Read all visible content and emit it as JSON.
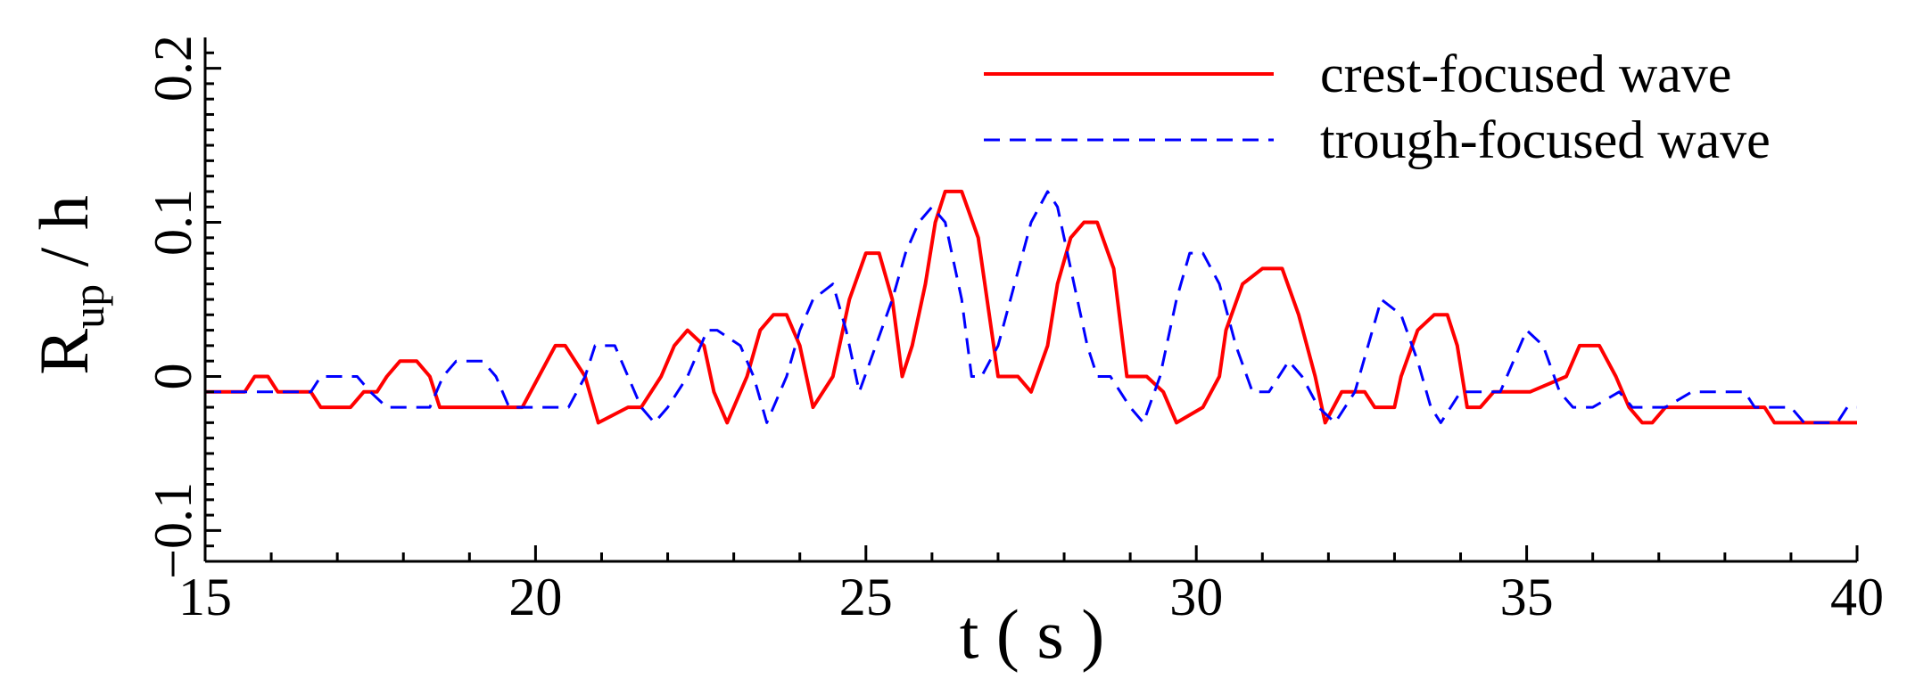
{
  "chart_data": {
    "type": "line",
    "xlabel": "t ( s )",
    "ylabel": {
      "main": "R",
      "subscript": "up",
      "suffix": " / h"
    },
    "xlim": [
      15,
      40
    ],
    "ylim": [
      -0.12,
      0.22
    ],
    "x_ticks": [
      15,
      20,
      25,
      30,
      35,
      40
    ],
    "x_tick_labels": [
      "15",
      "20",
      "25",
      "30",
      "35",
      "40"
    ],
    "y_ticks": [
      -0.1,
      0,
      0.1,
      0.2
    ],
    "y_tick_labels": [
      "−0.1",
      "0",
      "0.1",
      "0.2"
    ],
    "grid": false,
    "legend_position": "top-right",
    "series": [
      {
        "name": "crest-focused wave",
        "color": "#ff0000",
        "style": "solid",
        "x": [
          15,
          15.6,
          15.75,
          15.95,
          16.1,
          16.6,
          16.75,
          17.2,
          17.4,
          17.6,
          17.75,
          17.95,
          18.2,
          18.4,
          18.55,
          19.8,
          20.05,
          20.3,
          20.45,
          20.75,
          20.95,
          21.4,
          21.6,
          21.9,
          22.1,
          22.3,
          22.55,
          22.7,
          22.9,
          23.2,
          23.4,
          23.6,
          23.8,
          24.0,
          24.2,
          24.5,
          24.75,
          25.0,
          25.2,
          25.4,
          25.55,
          25.7,
          25.9,
          26.05,
          26.2,
          26.45,
          26.7,
          27.0,
          27.1,
          27.3,
          27.5,
          27.75,
          27.9,
          28.1,
          28.3,
          28.5,
          28.75,
          28.95,
          29.25,
          29.5,
          29.7,
          30.1,
          30.35,
          30.45,
          30.7,
          31.0,
          31.3,
          31.55,
          31.8,
          31.95,
          32.2,
          32.35,
          32.55,
          32.7,
          33.0,
          33.1,
          33.35,
          33.6,
          33.8,
          33.95,
          34.1,
          34.3,
          34.5,
          34.6,
          34.8,
          35.05,
          35.6,
          35.8,
          36.0,
          36.1,
          36.35,
          36.55,
          36.75,
          36.9,
          37.1,
          37.3,
          37.55,
          37.75,
          38.6,
          38.75,
          39.6,
          39.75,
          40.0
        ],
        "y": [
          -0.01,
          -0.01,
          0.0,
          0.0,
          -0.01,
          -0.01,
          -0.02,
          -0.02,
          -0.01,
          -0.01,
          0.0,
          0.01,
          0.01,
          0.0,
          -0.02,
          -0.02,
          0.0,
          0.02,
          0.02,
          0.0,
          -0.03,
          -0.02,
          -0.02,
          0.0,
          0.02,
          0.03,
          0.02,
          -0.01,
          -0.03,
          0.0,
          0.03,
          0.04,
          0.04,
          0.02,
          -0.02,
          0.0,
          0.05,
          0.08,
          0.08,
          0.05,
          0.0,
          0.02,
          0.06,
          0.1,
          0.12,
          0.12,
          0.09,
          0.0,
          0.0,
          0.0,
          -0.01,
          0.02,
          0.06,
          0.09,
          0.1,
          0.1,
          0.07,
          0.0,
          0.0,
          -0.01,
          -0.03,
          -0.02,
          0.0,
          0.03,
          0.06,
          0.07,
          0.07,
          0.04,
          0.0,
          -0.03,
          -0.01,
          -0.01,
          -0.01,
          -0.02,
          -0.02,
          0.0,
          0.03,
          0.04,
          0.04,
          0.02,
          -0.02,
          -0.02,
          -0.01,
          -0.01,
          -0.01,
          -0.01,
          0.0,
          0.02,
          0.02,
          0.02,
          0.0,
          -0.02,
          -0.03,
          -0.03,
          -0.02,
          -0.02,
          -0.02,
          -0.02,
          -0.02,
          -0.03,
          -0.03,
          -0.03,
          -0.03
        ],
        "points_note": ""
      },
      {
        "name": "trough-focused wave",
        "color": "#0000ff",
        "style": "dashed",
        "x": [
          15,
          16.6,
          16.75,
          17.3,
          17.5,
          17.75,
          18.4,
          18.6,
          18.8,
          19.2,
          19.4,
          19.6,
          20.5,
          20.75,
          20.9,
          21.2,
          21.4,
          21.6,
          21.8,
          22.0,
          22.3,
          22.6,
          22.75,
          23.1,
          23.3,
          23.5,
          23.8,
          24.0,
          24.2,
          24.5,
          24.7,
          24.9,
          25.15,
          25.4,
          25.6,
          25.8,
          26.0,
          26.2,
          26.45,
          26.6,
          26.75,
          27.0,
          27.25,
          27.5,
          27.75,
          27.9,
          28.1,
          28.35,
          28.5,
          28.7,
          29.0,
          29.2,
          29.45,
          29.7,
          29.9,
          30.1,
          30.35,
          30.6,
          30.85,
          31.1,
          31.4,
          31.6,
          31.85,
          32.1,
          32.4,
          32.6,
          32.8,
          33.1,
          33.35,
          33.55,
          33.7,
          34.0,
          34.4,
          34.6,
          34.8,
          35.0,
          35.25,
          35.5,
          35.7,
          36.0,
          36.4,
          36.6,
          36.9,
          37.1,
          37.5,
          38.3,
          38.45,
          39.0,
          39.2,
          39.5,
          39.7,
          39.85,
          40.0
        ],
        "y": [
          -0.01,
          -0.01,
          0.0,
          0.0,
          -0.01,
          -0.02,
          -0.02,
          0.0,
          0.01,
          0.01,
          0.0,
          -0.02,
          -0.02,
          0.0,
          0.02,
          0.02,
          0.0,
          -0.02,
          -0.03,
          -0.02,
          0.0,
          0.03,
          0.03,
          0.02,
          0.0,
          -0.03,
          0.0,
          0.03,
          0.05,
          0.06,
          0.03,
          -0.01,
          0.02,
          0.05,
          0.08,
          0.1,
          0.11,
          0.1,
          0.05,
          0.0,
          0.0,
          0.02,
          0.06,
          0.1,
          0.12,
          0.11,
          0.07,
          0.02,
          0.0,
          0.0,
          -0.02,
          -0.03,
          0.0,
          0.05,
          0.08,
          0.08,
          0.06,
          0.02,
          -0.01,
          -0.01,
          0.01,
          0.0,
          -0.02,
          -0.03,
          -0.01,
          0.02,
          0.05,
          0.04,
          0.01,
          -0.02,
          -0.03,
          -0.01,
          -0.01,
          -0.01,
          0.01,
          0.03,
          0.02,
          -0.01,
          -0.02,
          -0.02,
          -0.01,
          -0.02,
          -0.02,
          -0.02,
          -0.01,
          -0.01,
          -0.02,
          -0.02,
          -0.03,
          -0.03,
          -0.03,
          -0.02,
          -0.02
        ]
      }
    ]
  }
}
